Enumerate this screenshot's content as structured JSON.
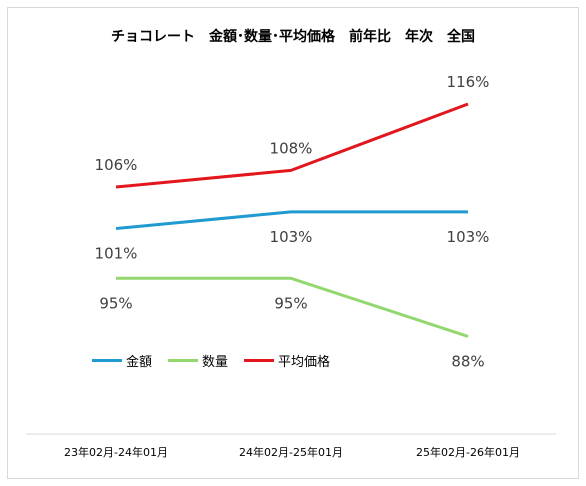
{
  "chart_data": {
    "type": "line",
    "title": "チョコレート　金額･数量･平均価格　前年比　年次　全国",
    "categories": [
      "23年02月-24年01月",
      "24年02月-25年01月",
      "25年02月-26年01月"
    ],
    "series": [
      {
        "name": "金額",
        "color": "#1f9bd1",
        "values": [
          101,
          103,
          103
        ],
        "labels": [
          "101%",
          "103%",
          "103%"
        ]
      },
      {
        "name": "数量",
        "color": "#92d86f",
        "values": [
          95,
          95,
          88
        ],
        "labels": [
          "95%",
          "95%",
          "88%"
        ]
      },
      {
        "name": "平均価格",
        "color": "#e3161d",
        "values": [
          106,
          108,
          116
        ],
        "labels": [
          "106%",
          "108%",
          "116%"
        ]
      }
    ],
    "legend": "bottom-left",
    "grid": false
  }
}
